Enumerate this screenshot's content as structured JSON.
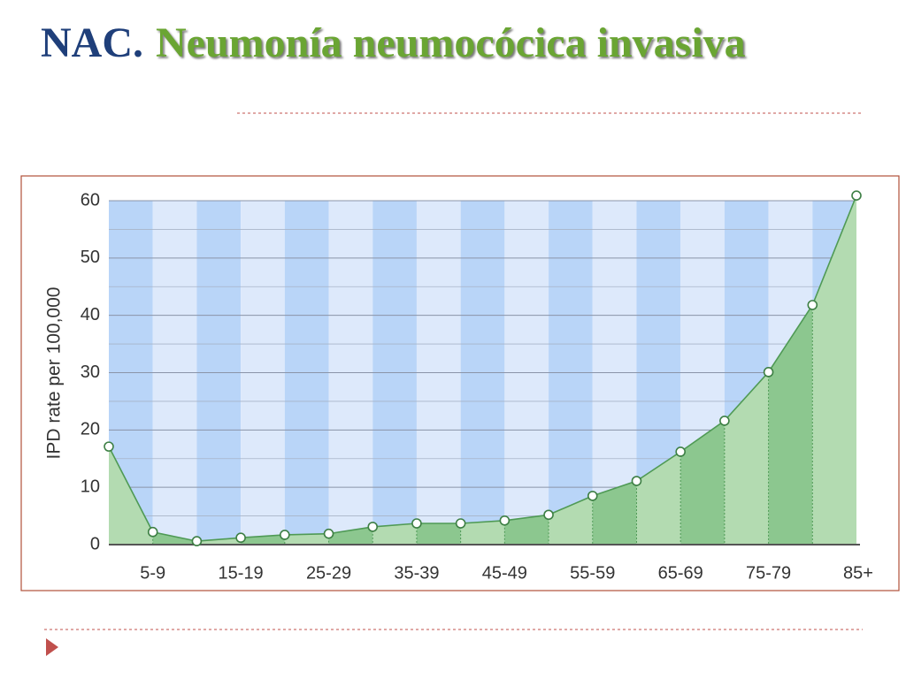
{
  "chart_data": {
    "type": "area",
    "title_prefix": "NAC.",
    "title": "Neumonía neumocócica invasiva",
    "y_label": "IPD rate per 100,000",
    "categories": [
      null,
      "5-9",
      null,
      "15-19",
      null,
      "25-29",
      null,
      "35-39",
      null,
      "45-49",
      null,
      "55-59",
      null,
      "65-69",
      null,
      "75-79",
      null,
      "85+"
    ],
    "values": [
      17.1,
      2.2,
      0.6,
      1.2,
      1.7,
      1.9,
      3.1,
      3.7,
      3.7,
      4.2,
      5.2,
      8.5,
      11.1,
      16.2,
      21.6,
      30.1,
      41.8,
      60.9
    ],
    "color": "#4f9a55",
    "ylim": [
      0,
      60
    ],
    "yticks": [
      0,
      10,
      20,
      30,
      40,
      50,
      60
    ],
    "grid": true
  }
}
